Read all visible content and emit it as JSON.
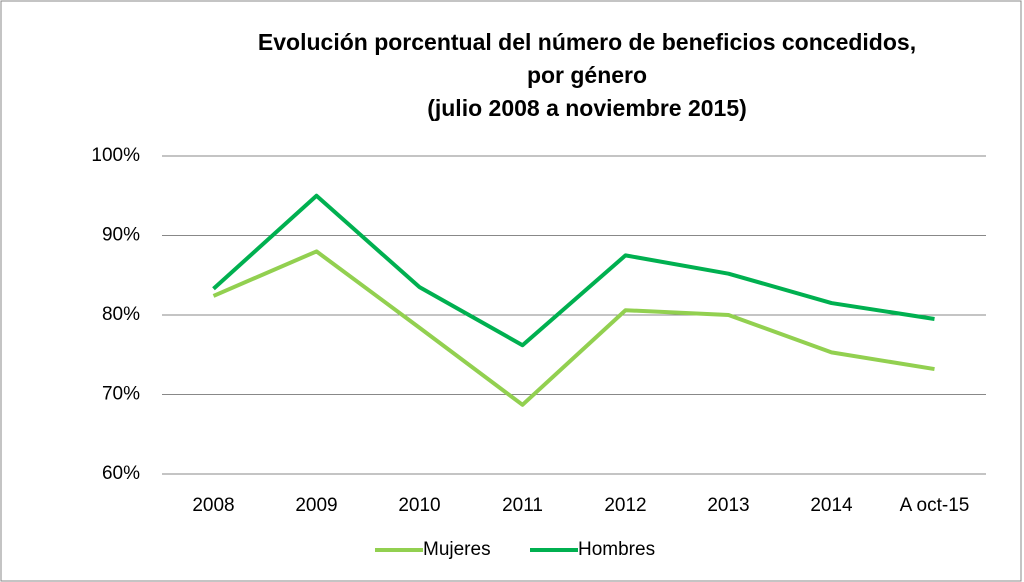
{
  "chart_data": {
    "type": "line",
    "title": [
      "Evolución porcentual del número de beneficios concedidos,",
      "por género",
      "(julio 2008 a noviembre 2015)"
    ],
    "categories": [
      "2008",
      "2009",
      "2010",
      "2011",
      "2012",
      "2013",
      "2014",
      "A oct-15"
    ],
    "series": [
      {
        "name": "Mujeres",
        "color": "#92d050",
        "values": [
          82.4,
          88,
          78.4,
          68.7,
          80.6,
          80,
          75.3,
          73.2
        ]
      },
      {
        "name": "Hombres",
        "color": "#00b050",
        "values": [
          83.3,
          95,
          83.5,
          76.2,
          87.5,
          85.2,
          81.5,
          79.5
        ]
      }
    ],
    "ylim": [
      60,
      100
    ],
    "yticks": [
      {
        "value": 60,
        "label": "60%"
      },
      {
        "value": 70,
        "label": "70%"
      },
      {
        "value": 80,
        "label": "80%"
      },
      {
        "value": 90,
        "label": "90%"
      },
      {
        "value": 100,
        "label": "100%"
      }
    ],
    "grid": true,
    "legend": "bottom"
  }
}
